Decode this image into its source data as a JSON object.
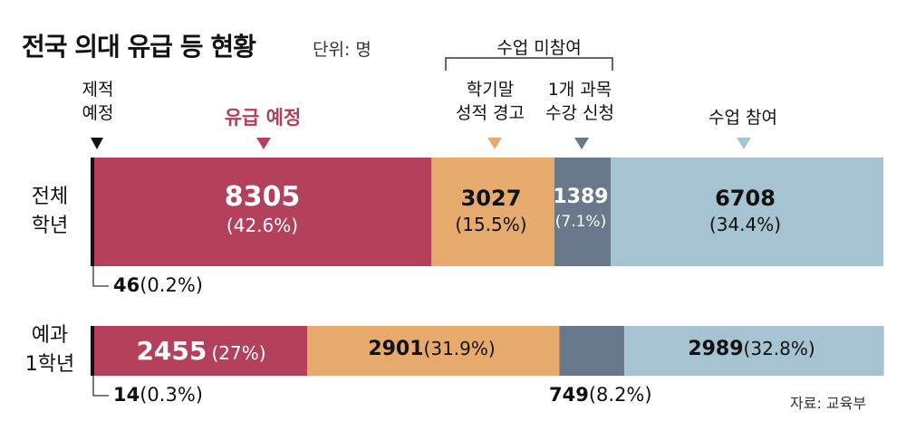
{
  "title": "전국 의대 유급 등 현황",
  "unit": "단위: 명",
  "group_label": "수업 미참여",
  "source": "자료: 교육부",
  "categories": {
    "expelled": [
      "제적",
      "예정"
    ],
    "held_back": "유급 예정",
    "warning": [
      "학기말",
      "성적 경고"
    ],
    "one_course": [
      "1개 과목",
      "수강 신청"
    ],
    "attending": "수업 참여"
  },
  "rows": {
    "all": {
      "label": [
        "전체",
        "학년"
      ],
      "note_value": "46",
      "note_pct": "(0.2%)"
    },
    "pre": {
      "label": [
        "예과",
        "1학년"
      ],
      "note_value": "14",
      "note_pct": "(0.3%)",
      "note2_value": "749",
      "note2_pct": "(8.2%)"
    }
  },
  "colors": {
    "held_back": "#b5405b",
    "warning": "#e6aa6d",
    "one_course": "#69788a",
    "attending": "#a5c3d0",
    "expelled": "#111111"
  },
  "chart_data": {
    "type": "bar",
    "orientation": "horizontal-stacked-100%",
    "categories": [
      "전체 학년",
      "예과 1학년"
    ],
    "series": [
      {
        "name": "제적 예정",
        "values": [
          46,
          14
        ],
        "percent": [
          "0.2%",
          "0.3%"
        ]
      },
      {
        "name": "유급 예정",
        "values": [
          8305,
          2455
        ],
        "percent": [
          "42.6%",
          "27%"
        ]
      },
      {
        "name": "학기말 성적 경고",
        "values": [
          3027,
          2901
        ],
        "percent": [
          "15.5%",
          "31.9%"
        ]
      },
      {
        "name": "1개 과목 수강 신청",
        "values": [
          1389,
          749
        ],
        "percent": [
          "7.1%",
          "8.2%"
        ]
      },
      {
        "name": "수업 참여",
        "values": [
          6708,
          2989
        ],
        "percent": [
          "34.4%",
          "32.8%"
        ]
      }
    ],
    "labels": {
      "row1": [
        "8305",
        "(42.6%)",
        "3027",
        "(15.5%)",
        "1389",
        "(7.1%)",
        "6708",
        "(34.4%)"
      ],
      "row2": [
        "2455",
        "(27%)",
        "2901",
        "(31.9%)",
        "2989",
        "(32.8%)"
      ]
    },
    "title": "전국 의대 유급 등 현황",
    "ylabel": "단위: 명"
  }
}
